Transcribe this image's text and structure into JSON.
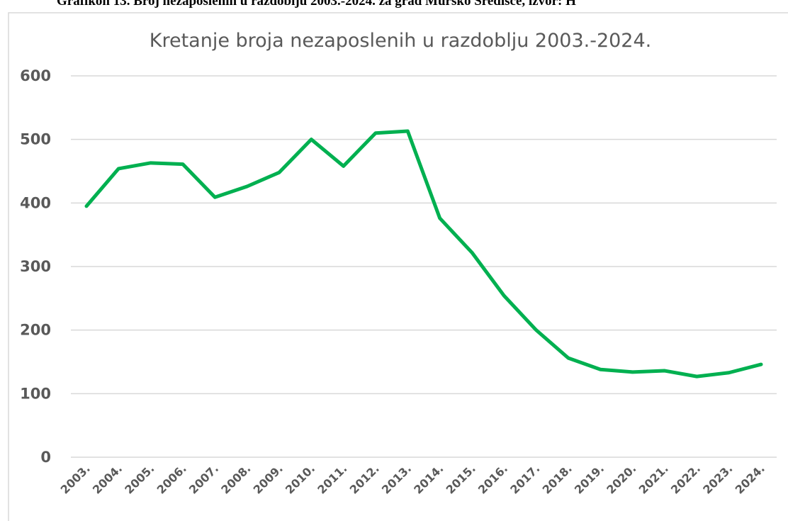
{
  "caption": "Grafikon 13. Broj nezaposlenih u razdoblju 2003.-2024. za grad Mursko Središće, izvor: H",
  "chart_data": {
    "type": "line",
    "title": "Kretanje broja nezaposlenih u razdoblju 2003.-2024.",
    "categories": [
      "2003.",
      "2004.",
      "2005.",
      "2006.",
      "2007.",
      "2008.",
      "2009.",
      "2010.",
      "2011.",
      "2012.",
      "2013.",
      "2014.",
      "2015.",
      "2016.",
      "2017.",
      "2018.",
      "2019.",
      "2020.",
      "2021.",
      "2022.",
      "2023.",
      "2024."
    ],
    "values": [
      395,
      454,
      463,
      461,
      409,
      426,
      448,
      500,
      458,
      510,
      513,
      376,
      322,
      254,
      200,
      156,
      138,
      134,
      136,
      127,
      133,
      146
    ],
    "color": "#00b050",
    "ylim": [
      0,
      600
    ],
    "yticks": [
      0,
      100,
      200,
      300,
      400,
      500,
      600
    ],
    "grid": true
  }
}
